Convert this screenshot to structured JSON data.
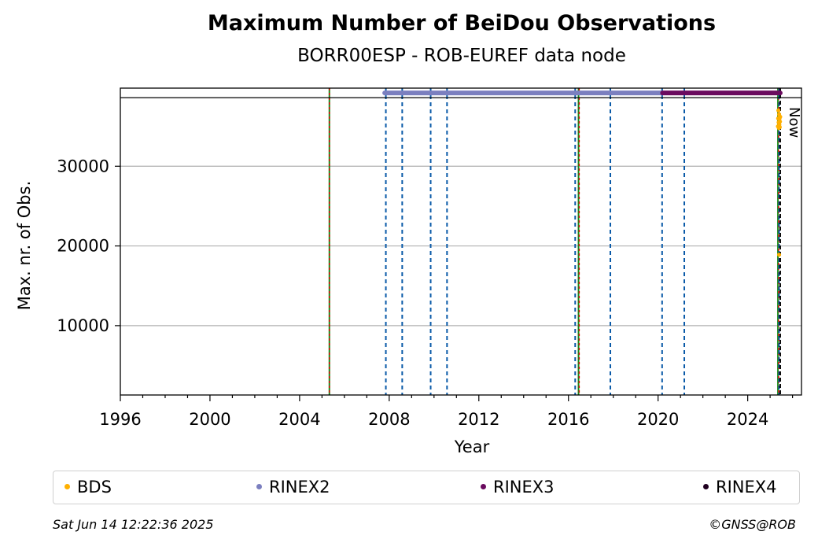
{
  "chart_data": {
    "type": "scatter",
    "title": "Maximum Number of BeiDou Observations",
    "subtitle": "BORR00ESP - ROB-EUREF data node",
    "xlabel": "Year",
    "ylabel": "Max. nr. of Obs.",
    "xlim": [
      1996.0,
      2026.4
    ],
    "ylim": [
      1300,
      39800
    ],
    "x_ticks": [
      1996,
      2000,
      2004,
      2008,
      2012,
      2016,
      2020,
      2024
    ],
    "y_ticks": [
      10000,
      20000,
      30000
    ],
    "grid": "horizontal",
    "legend_placement": "below",
    "now_label": "Now",
    "now_x": 2025.45,
    "top_band_y": 38600,
    "series": [
      {
        "name": "BDS",
        "color": "#ffb000",
        "x": [
          2025.35,
          2025.36,
          2025.37,
          2025.38,
          2025.39,
          2025.4,
          2025.41,
          2025.42,
          2025.43,
          2025.44,
          2025.45,
          2025.4
        ],
        "y": [
          35000,
          36000,
          37000,
          35500,
          34800,
          36500,
          35200,
          36000,
          34900,
          35600,
          36200,
          18900
        ]
      },
      {
        "name": "RINEX2",
        "color": "#7b7fbf",
        "x": [
          2007.8,
          2020.2
        ],
        "y": [
          39200,
          39200
        ]
      },
      {
        "name": "RINEX3",
        "color": "#6a0a5e",
        "x": [
          2020.2,
          2025.45
        ],
        "y": [
          39200,
          39200
        ]
      },
      {
        "name": "RINEX4",
        "color": "#200020",
        "x": [],
        "y": []
      }
    ],
    "green_lines": [
      2005.33,
      2016.45,
      2025.35
    ],
    "red_lines": [
      2005.33,
      2016.48,
      2025.38
    ],
    "blue_dashed_lines": [
      2007.85,
      2008.58,
      2009.85,
      2010.58,
      2016.3,
      2017.87,
      2020.18,
      2021.17,
      2025.4
    ],
    "black_dashed_lines": [
      2025.45
    ]
  },
  "footer": {
    "timestamp": "Sat Jun 14 12:22:36 2025",
    "credit": "©GNSS@ROB"
  }
}
